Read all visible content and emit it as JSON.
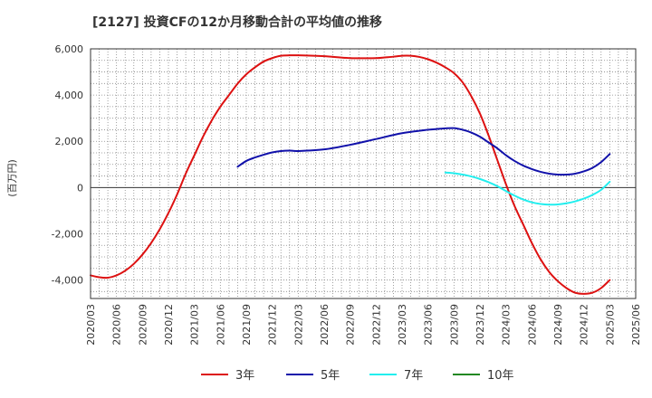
{
  "chart_data": {
    "type": "line",
    "title": "[2127]  投資CFの12か月移動合計の平均値の推移",
    "ylabel": "(百万円)",
    "xlabel": "",
    "ylim": [
      -4800,
      6000
    ],
    "yticks": [
      -4000,
      -2000,
      0,
      2000,
      4000,
      6000
    ],
    "ytick_labels": [
      "-4,000",
      "-2,000",
      "0",
      "2,000",
      "4,000",
      "6,000"
    ],
    "xticks": [
      "2020/03",
      "2020/06",
      "2020/09",
      "2020/12",
      "2021/03",
      "2021/06",
      "2021/09",
      "2021/12",
      "2022/03",
      "2022/06",
      "2022/09",
      "2022/12",
      "2023/03",
      "2023/06",
      "2023/09",
      "2023/12",
      "2024/03",
      "2024/06",
      "2024/09",
      "2024/12",
      "2025/03",
      "2025/06"
    ],
    "grid": true,
    "legend_position": "bottom",
    "series": [
      {
        "name": "3年",
        "color": "#dd1111",
        "x": [
          "2020/03",
          "2020/04",
          "2020/05",
          "2020/06",
          "2020/07",
          "2020/08",
          "2020/09",
          "2020/10",
          "2020/11",
          "2020/12",
          "2021/01",
          "2021/02",
          "2021/03",
          "2021/04",
          "2021/05",
          "2021/06",
          "2021/07",
          "2021/08",
          "2021/09",
          "2021/10",
          "2021/11",
          "2021/12",
          "2022/01",
          "2022/02",
          "2022/03",
          "2022/06",
          "2022/09",
          "2022/12",
          "2023/01",
          "2023/02",
          "2023/03",
          "2023/04",
          "2023/05",
          "2023/06",
          "2023/07",
          "2023/08",
          "2023/09",
          "2023/10",
          "2023/11",
          "2023/12",
          "2024/01",
          "2024/02",
          "2024/03",
          "2024/04",
          "2024/05",
          "2024/06",
          "2024/07",
          "2024/08",
          "2024/09",
          "2024/10",
          "2024/11",
          "2024/12",
          "2025/01",
          "2025/02",
          "2025/03"
        ],
        "values": [
          -3800,
          -3880,
          -3900,
          -3800,
          -3600,
          -3300,
          -2900,
          -2400,
          -1800,
          -1100,
          -300,
          600,
          1400,
          2200,
          2900,
          3500,
          4000,
          4500,
          4900,
          5200,
          5450,
          5600,
          5700,
          5720,
          5720,
          5680,
          5600,
          5600,
          5630,
          5660,
          5700,
          5700,
          5650,
          5550,
          5400,
          5200,
          4950,
          4550,
          3950,
          3200,
          2250,
          1200,
          150,
          -800,
          -1600,
          -2400,
          -3100,
          -3650,
          -4050,
          -4350,
          -4550,
          -4600,
          -4550,
          -4350,
          -4000
        ]
      },
      {
        "name": "5年",
        "color": "#1111aa",
        "x": [
          "2021/08",
          "2021/09",
          "2021/10",
          "2021/11",
          "2021/12",
          "2022/01",
          "2022/02",
          "2022/03",
          "2022/06",
          "2022/09",
          "2022/12",
          "2023/03",
          "2023/06",
          "2023/07",
          "2023/08",
          "2023/09",
          "2023/10",
          "2023/11",
          "2023/12",
          "2024/01",
          "2024/02",
          "2024/03",
          "2024/04",
          "2024/05",
          "2024/06",
          "2024/07",
          "2024/08",
          "2024/09",
          "2024/10",
          "2024/11",
          "2024/12",
          "2025/01",
          "2025/02",
          "2025/03"
        ],
        "values": [
          900,
          1150,
          1300,
          1420,
          1520,
          1580,
          1600,
          1580,
          1650,
          1850,
          2100,
          2350,
          2500,
          2530,
          2560,
          2570,
          2500,
          2380,
          2200,
          1950,
          1700,
          1400,
          1150,
          950,
          800,
          680,
          600,
          560,
          560,
          600,
          700,
          850,
          1100,
          1450
        ]
      },
      {
        "name": "7年",
        "color": "#22eeee",
        "x": [
          "2023/08",
          "2023/09",
          "2023/10",
          "2023/11",
          "2023/12",
          "2024/01",
          "2024/02",
          "2024/03",
          "2024/04",
          "2024/05",
          "2024/06",
          "2024/07",
          "2024/08",
          "2024/09",
          "2024/10",
          "2024/11",
          "2024/12",
          "2025/01",
          "2025/02",
          "2025/03"
        ],
        "values": [
          650,
          620,
          560,
          480,
          370,
          230,
          60,
          -150,
          -350,
          -520,
          -640,
          -710,
          -740,
          -730,
          -680,
          -600,
          -480,
          -320,
          -100,
          250
        ]
      },
      {
        "name": "10年",
        "color": "#228822",
        "x": [],
        "values": []
      }
    ]
  }
}
